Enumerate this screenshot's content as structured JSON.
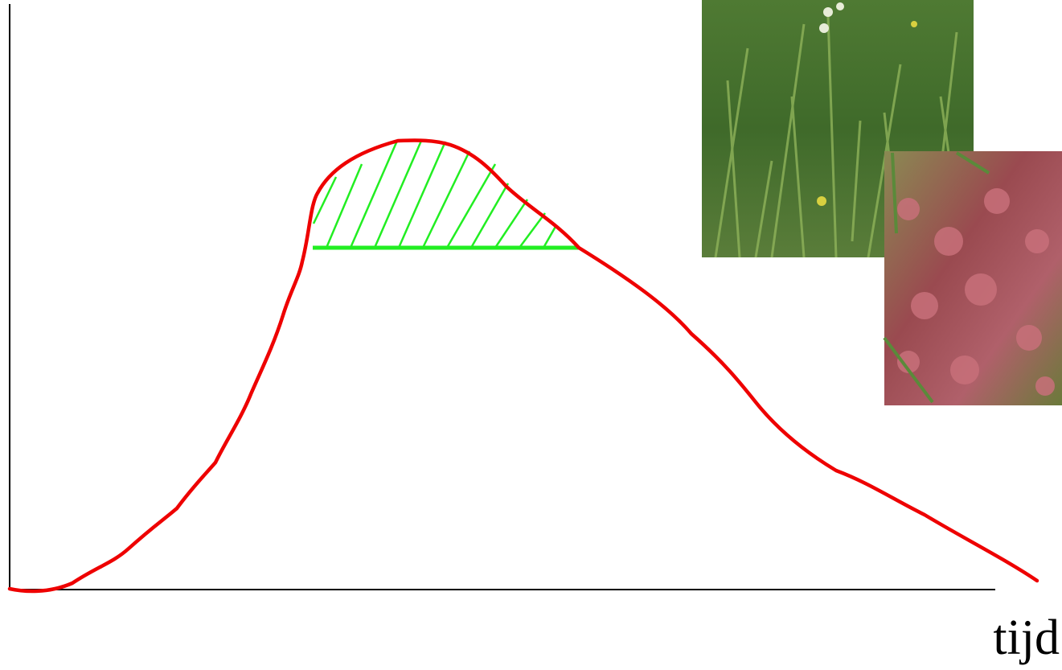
{
  "axis_label": "tijd"
}
